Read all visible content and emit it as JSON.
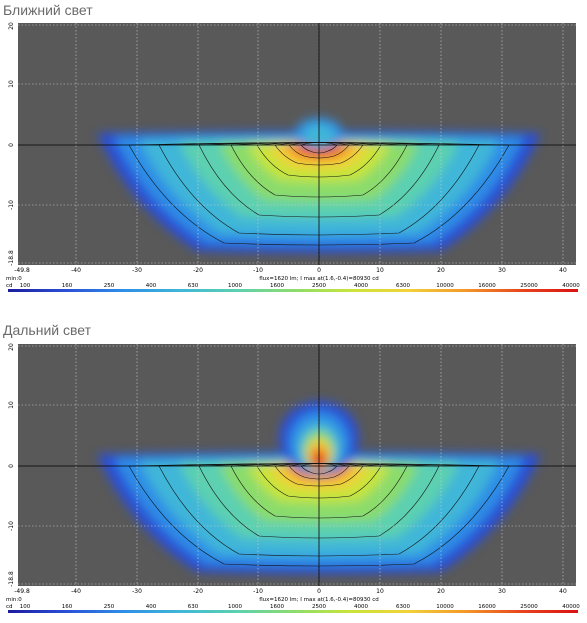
{
  "sections": [
    {
      "title": "Ближний свет",
      "x_ticks": [
        "-49.8",
        "-40",
        "-30",
        "-20",
        "-10",
        "0",
        "10",
        "20",
        "30",
        "40"
      ],
      "y_ticks": [
        "20",
        "10",
        "0",
        "-10",
        "-18.8"
      ],
      "info": "flux=1620 lm; I max at(1.6,-0.4)=80930 cd",
      "min_label": "min:0",
      "unit_label": "cd",
      "colorbar_ticks": [
        "100",
        "160",
        "250",
        "400",
        "630",
        "1000",
        "1600",
        "2500",
        "4000",
        "6300",
        "10000",
        "16000",
        "25000",
        "40000"
      ]
    },
    {
      "title": "Дальний свет",
      "x_ticks": [
        "-49.8",
        "-40",
        "-30",
        "-20",
        "-10",
        "0",
        "10",
        "20",
        "30",
        "40"
      ],
      "y_ticks": [
        "20",
        "10",
        "0",
        "-10",
        "-18.8"
      ],
      "info": "flux=1620 lm; I max at(1.6,-0.4)=80930 cd",
      "min_label": "min:0",
      "unit_label": "cd",
      "colorbar_ticks": [
        "100",
        "160",
        "250",
        "400",
        "630",
        "1000",
        "1600",
        "2500",
        "4000",
        "6300",
        "10000",
        "16000",
        "25000",
        "40000"
      ]
    }
  ],
  "colors": {
    "plot_background": "#595959",
    "colormap": [
      "#1c1c9e",
      "#2a4fd6",
      "#2f8de6",
      "#3fb6d8",
      "#5cd0b0",
      "#8bdc6c",
      "#c8e43a",
      "#f2d23a",
      "#f39a2a",
      "#e9451e",
      "#d81212"
    ]
  }
}
